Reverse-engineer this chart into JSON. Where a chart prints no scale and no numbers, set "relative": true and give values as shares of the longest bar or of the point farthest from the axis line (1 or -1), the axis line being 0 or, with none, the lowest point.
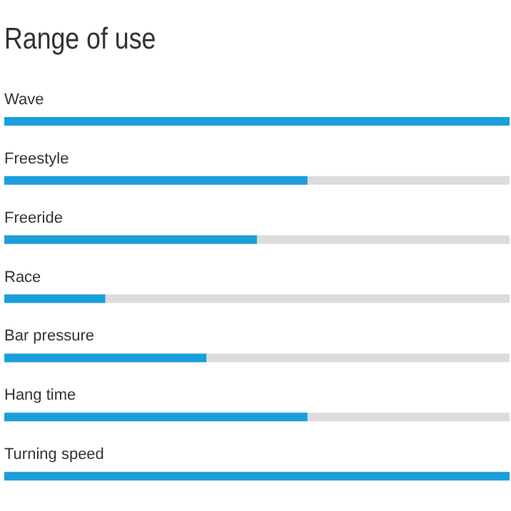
{
  "chart_data": {
    "type": "bar",
    "title": "Range of use",
    "orientation": "horizontal",
    "relative": true,
    "color": "#1a9fdb",
    "categories": [
      "Wave",
      "Freestyle",
      "Freeride",
      "Race",
      "Bar pressure",
      "Hang time",
      "Turning speed"
    ],
    "values": [
      1,
      0.6,
      0.5,
      0.2,
      0.4,
      0.6,
      1
    ]
  }
}
